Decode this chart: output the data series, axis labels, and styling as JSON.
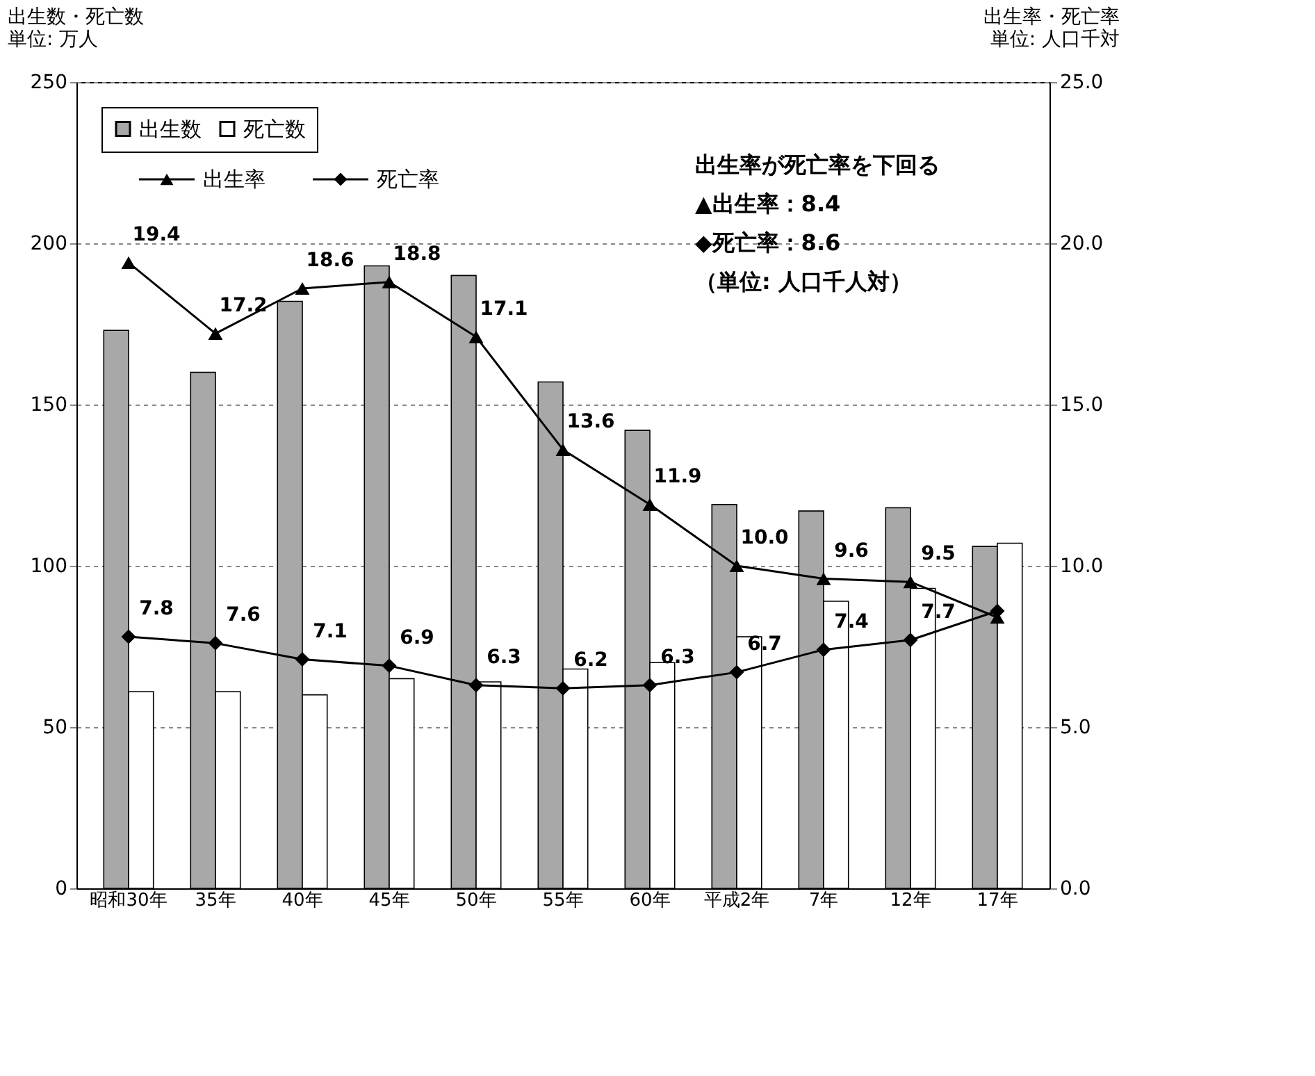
{
  "chart_data": {
    "type": "bar",
    "categories": [
      "昭和30年",
      "35年",
      "40年",
      "45年",
      "50年",
      "55年",
      "60年",
      "平成2年",
      "7年",
      "12年",
      "17年"
    ],
    "ylabel": "出生数・死亡数",
    "y2label": "出生率・死亡率",
    "ylim": [
      0,
      250
    ],
    "yticks": [
      0,
      50,
      100,
      150,
      200,
      250
    ],
    "y2lim": [
      0,
      25
    ],
    "y2ticks": [
      {
        "value": 0,
        "label": "0.0"
      },
      {
        "value": 5,
        "label": "5.0"
      },
      {
        "value": 10,
        "label": "10.0"
      },
      {
        "value": 15,
        "label": "15.0"
      },
      {
        "value": 20,
        "label": "20.0"
      },
      {
        "value": 25,
        "label": "25.0"
      }
    ],
    "grid": "y",
    "legend": "top left",
    "series": [
      {
        "name": "出生数",
        "color": "#a8a8a8",
        "values": [
          173,
          160,
          182,
          193,
          190,
          157,
          142,
          119,
          117,
          118,
          106
        ]
      },
      {
        "name": "死亡数",
        "color": "#ffffff",
        "values": [
          61,
          61,
          60,
          65,
          64,
          68,
          70,
          78,
          89,
          93,
          107
        ]
      },
      {
        "name": "出生率",
        "type": "line",
        "axis": "y2",
        "color": "#000000",
        "marker": "triangle",
        "values": [
          19.4,
          17.2,
          18.6,
          18.8,
          17.1,
          13.6,
          11.9,
          10.0,
          9.6,
          9.5,
          8.4
        ],
        "value_labels": [
          "19.4",
          "17.2",
          "18.6",
          "18.8",
          "17.1",
          "13.6",
          "11.9",
          "10.0",
          "9.6",
          "9.5",
          null
        ]
      },
      {
        "name": "死亡率",
        "type": "line",
        "axis": "y2",
        "color": "#000000",
        "marker": "diamond",
        "values": [
          7.8,
          7.6,
          7.1,
          6.9,
          6.3,
          6.2,
          6.3,
          6.7,
          7.4,
          7.7,
          8.6
        ],
        "value_labels": [
          "7.8",
          "7.6",
          "7.1",
          "6.9",
          "6.3",
          "6.2",
          "6.3",
          "6.7",
          "7.4",
          "7.7",
          null
        ]
      }
    ],
    "annotations": [
      "単位: 万人",
      "単位: 人口千対",
      "出生率が死亡率を下回る",
      "▲出生率：8.4",
      "◆死亡率：8.6",
      "（単位: 人口千人対）"
    ]
  }
}
